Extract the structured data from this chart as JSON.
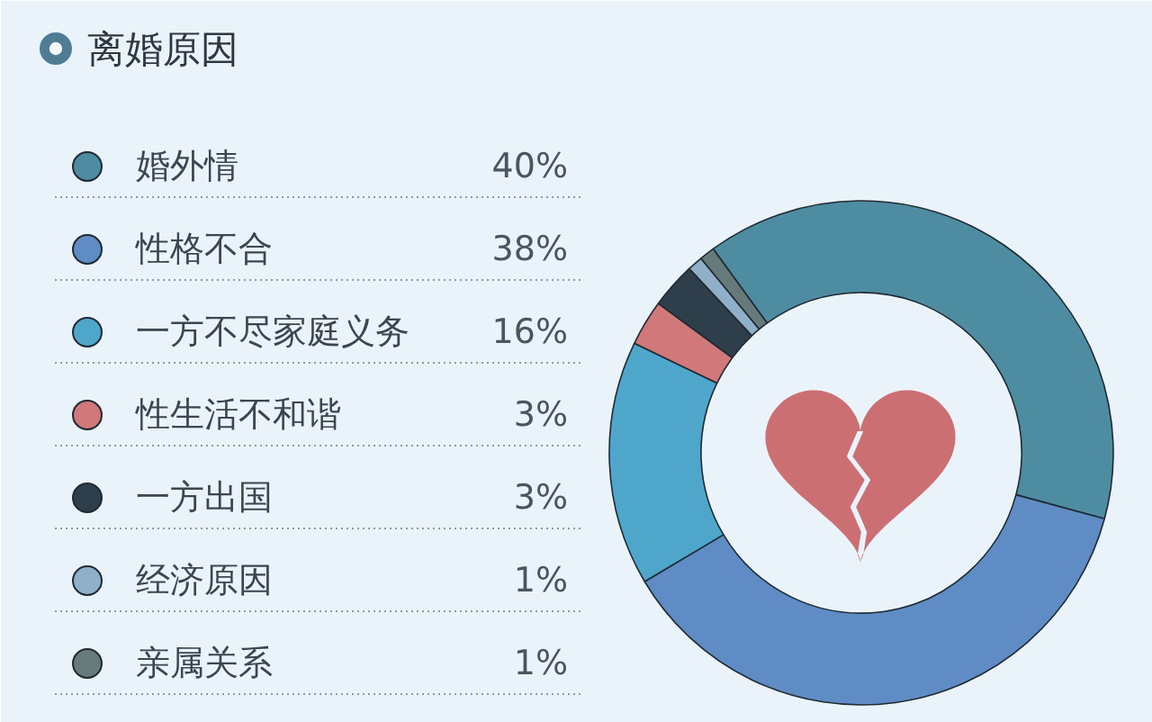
{
  "chart_data": {
    "type": "donut",
    "title": "离婚原因",
    "categories": [
      "婚外情",
      "性格不合",
      "一方不尽家庭义务",
      "性生活不和谐",
      "一方出国",
      "经济原因",
      "亲属关系"
    ],
    "values": [
      40,
      38,
      16,
      3,
      3,
      1,
      1
    ],
    "colors": [
      "#4e8ca2",
      "#5f8cc4",
      "#4fa6cb",
      "#d0787a",
      "#2f3e4b",
      "#8fb0c8",
      "#667a7c"
    ],
    "value_labels": [
      "40%",
      "38%",
      "16%",
      "3%",
      "3%",
      "1%",
      "1%"
    ],
    "legend": "left"
  }
}
